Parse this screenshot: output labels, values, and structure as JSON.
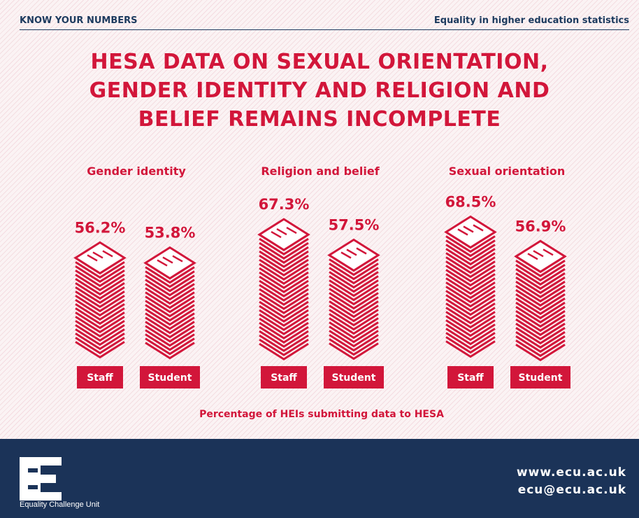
{
  "header": {
    "left": "KNOW YOUR NUMBERS",
    "right": "Equality in higher education statistics"
  },
  "chart_data": {
    "type": "bar",
    "title": [
      "HESA DATA ON SEXUAL ORIENTATION,",
      "GENDER IDENTITY AND RELIGION AND",
      "BELIEF REMAINS INCOMPLETE"
    ],
    "x_label": "Percentage of HEIs submitting data to HESA",
    "categories": [
      "Gender identity",
      "Religion and belief",
      "Sexual orientation"
    ],
    "series": [
      {
        "name": "Staff",
        "color": "#d2163a",
        "values": [
          56.2,
          67.3,
          68.5
        ],
        "value_labels": [
          "56.2%",
          "67.3%",
          "68.5%"
        ]
      },
      {
        "name": "Student",
        "color": "#d2163a",
        "values": [
          53.8,
          57.5,
          56.9
        ],
        "value_labels": [
          "53.8%",
          "57.5%",
          "56.9%"
        ]
      }
    ]
  },
  "footer": {
    "organization": "Equality Challenge Unit",
    "website": "www.ecu.ac.uk",
    "email": "ecu@ecu.ac.uk"
  }
}
